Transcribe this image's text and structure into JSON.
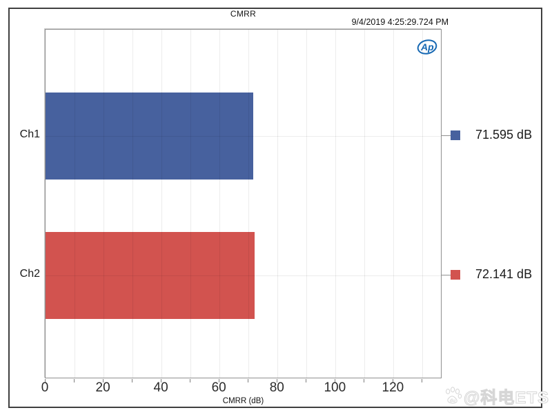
{
  "header": {
    "title": "CMRR",
    "timestamp": "9/4/2019 4:25:29.724 PM"
  },
  "logo": {
    "text": "Ap"
  },
  "chart_data": {
    "type": "bar",
    "orientation": "horizontal",
    "title": "CMRR",
    "categories": [
      "Ch1",
      "Ch2"
    ],
    "values": [
      71.595,
      72.141
    ],
    "value_labels": [
      "71.595 dB",
      "72.141 dB"
    ],
    "colors": [
      "#47619E",
      "#D2534F"
    ],
    "xlabel": "CMRR (dB)",
    "ylabel": "",
    "xlim": [
      0,
      136.8
    ],
    "xticks": [
      0,
      20,
      40,
      60,
      80,
      100,
      120
    ],
    "minor_grid_step": 10,
    "grid": true,
    "legend_position": "right"
  },
  "watermark": {
    "icon": "paw-icon",
    "icon_text": "du",
    "text": "@科电ETS"
  }
}
